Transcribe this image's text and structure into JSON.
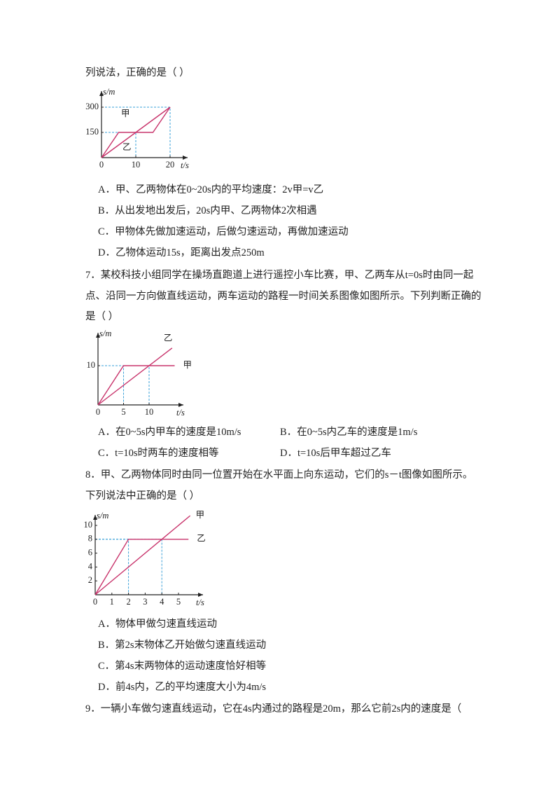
{
  "q6": {
    "stem_tail": "列说法，正确的是（    ）",
    "figure": {
      "ylabel": "s/m",
      "xlabel": "t/s",
      "xticks": [
        0,
        10,
        20
      ],
      "yticks": [
        150,
        300
      ],
      "series": [
        {
          "name": "甲",
          "x": [
            0,
            5,
            15,
            20
          ],
          "values": [
            0,
            150,
            150,
            300
          ]
        },
        {
          "name": "乙",
          "x": [
            0,
            20
          ],
          "values": [
            0,
            300
          ]
        }
      ],
      "guides": [
        [
          10,
          150
        ],
        [
          20,
          300
        ]
      ]
    },
    "options": [
      "A．甲、乙两物体在0~20s内的平均速度：2v甲=v乙",
      "B．从出发地出发后，20s内甲、乙两物体2次相遇",
      "C．甲物体先做加速运动，后做匀速运动，再做加速运动",
      "D．乙物体运动15s，距离出发点250m"
    ]
  },
  "q7": {
    "stem": [
      "7．某校科技小组同学在操场直跑道上进行遥控小车比赛，甲、乙两车从t=0s时由同一起",
      "点、沿同一方向做直线运动，两车运动的路程一时间关系图像如图所示。下列判断正确的",
      "是（    ）"
    ],
    "figure": {
      "ylabel": "s/m",
      "xlabel": "t/s",
      "xticks": [
        0,
        5,
        10
      ],
      "yticks": [
        10
      ],
      "series": [
        {
          "name": "甲",
          "x": [
            0,
            5,
            15
          ],
          "values": [
            0,
            10,
            10
          ]
        },
        {
          "name": "乙",
          "x": [
            0,
            14.5
          ],
          "values": [
            0,
            14.5
          ]
        }
      ],
      "guides": [
        [
          5,
          10
        ],
        [
          10,
          10
        ]
      ]
    },
    "options": [
      "A．在0~5s内甲车的速度是10m/s",
      "B．在0~5s内乙车的速度是1m/s",
      "C．t=10s时两车的速度相等",
      "D．t=10s后甲车超过乙车"
    ]
  },
  "q8": {
    "stem": [
      "8．甲、乙两物体同时由同一位置开始在水平面上向东运动，它们的s－t图像如图所示。",
      "下列说法中正确的是（    ）"
    ],
    "figure": {
      "ylabel": "s/m",
      "xlabel": "t/s",
      "xticks": [
        0,
        1,
        2,
        3,
        4,
        5
      ],
      "yticks": [
        2,
        4,
        6,
        8,
        10
      ],
      "series": [
        {
          "name": "甲",
          "x": [
            0,
            5.7
          ],
          "values": [
            0,
            11.4
          ]
        },
        {
          "name": "乙",
          "x": [
            0,
            2,
            5.6
          ],
          "values": [
            0,
            8,
            8
          ]
        }
      ],
      "guides": [
        [
          2,
          8
        ],
        [
          4,
          8
        ]
      ]
    },
    "options": [
      "A．物体甲做匀速直线运动",
      "B．第2s末物体乙开始做匀速直线运动",
      "C．第4s末两物体的运动速度恰好相等",
      "D．前4s内，乙的平均速度大小为4m/s"
    ]
  },
  "q9": {
    "stem": [
      "9．一辆小车做匀速直线运动，它在4s内通过的路程是20m，那么它前2s内的速度是（"
    ]
  }
}
